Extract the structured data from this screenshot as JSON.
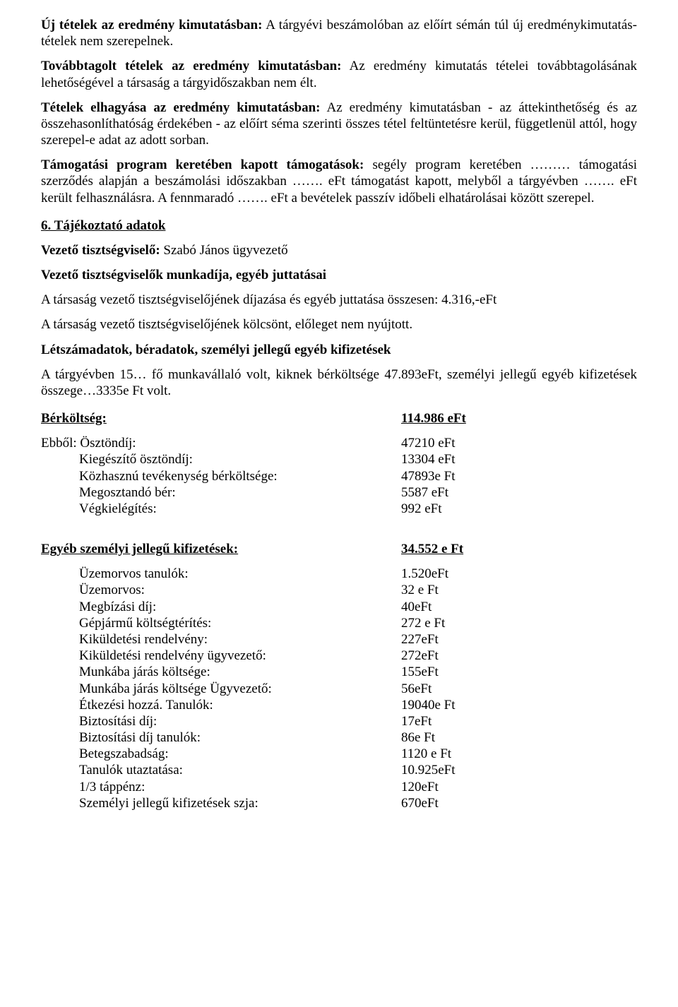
{
  "paragraphs": {
    "p1_lead": "Új tételek az eredmény kimutatásban:",
    "p1_rest": " A tárgyévi beszámolóban az előírt sémán túl új eredménykimutatás-tételek nem szerepelnek.",
    "p2_lead": "Továbbtagolt tételek az eredmény kimutatásban:",
    "p2_rest": " Az eredmény kimutatás tételei továbbtagolásának lehetőségével a társaság a tárgyidőszakban nem élt.",
    "p3_lead": "Tételek elhagyása az eredmény kimutatásban:",
    "p3_rest": " Az eredmény kimutatásban - az áttekinthetőség és az összehasonlíthatóság érdekében - az előírt séma szerinti összes tétel feltüntetésre kerül, függetlenül attól, hogy szerepel-e adat az adott sorban.",
    "p4_lead": "Támogatási program keretében kapott támogatások:",
    "p4_rest": " segély program keretében ……… támogatási szerződés alapján a beszámolási időszakban ……. eFt támogatást kapott, melyből a tárgyévben ……. eFt került felhasználásra. A fennmaradó ……. eFt a bevételek passzív időbeli elhatárolásai között szerepel.",
    "h6": "6. Tájékoztató adatok",
    "vezeto_l": "Vezető tisztségviselő: ",
    "vezeto_r": "Szabó János ügyvezető",
    "vezeto_munk": "Vezető tisztségviselők munkadíja, egyéb juttatásai",
    "dij": "A társaság vezető tisztségviselőjének díjazása és egyéb juttatása összesen: 4.316,-eFt",
    "kolcson": "A társaság vezető tisztségviselőjének kölcsönt, előleget nem nyújtott.",
    "letszam": "Létszámadatok, béradatok, személyi jellegű egyéb kifizetések",
    "targyev": "A tárgyévben 15… fő munkavállaló volt, kiknek bérköltsége 47.893eFt, személyi jellegű egyéb kifizetések összege…3335e Ft volt.",
    "ber_label": "Bérköltség:",
    "ber_value": "114.986 eFt",
    "ebbol": "Ebből: Ösztöndíj:",
    "ber_rows": [
      {
        "label": "Kiegészítő ösztöndíj:",
        "value": "13304 eFt"
      },
      {
        "label": "Közhasznú tevékenység bérköltsége:",
        "value": "47893e Ft"
      },
      {
        "label": "Megosztandó bér:",
        "value": "5587 eFt"
      },
      {
        "label": "Végkielégítés:",
        "value": "992 eFt"
      }
    ],
    "ebbol_value": "47210 eFt",
    "egy_label": "Egyéb személyi jellegű kifizetések:",
    "egy_value": "34.552 e Ft",
    "egy_rows": [
      {
        "label": "Üzemorvos tanulók:",
        "value": "1.520eFt"
      },
      {
        "label": "Üzemorvos:",
        "value": "32 e Ft"
      },
      {
        "label": "Megbízási díj:",
        "value": "40eFt"
      },
      {
        "label": "Gépjármű költségtérítés:",
        "value": "272 e Ft"
      },
      {
        "label": "Kiküldetési rendelvény:",
        "value": "227eFt"
      },
      {
        "label": "Kiküldetési rendelvény ügyvezető:",
        "value": "272eFt"
      },
      {
        "label": "Munkába járás költsége:",
        "value": "155eFt"
      },
      {
        "label": "Munkába járás költsége Ügyvezető:",
        "value": "56eFt"
      },
      {
        "label": "Étkezési hozzá. Tanulók:",
        "value": "19040e Ft"
      },
      {
        "label": "Biztosítási díj:",
        "value": "17eFt"
      },
      {
        "label": "Biztosítási díj tanulók:",
        "value": "86e Ft"
      },
      {
        "label": "Betegszabadság:",
        "value": "1120 e Ft"
      },
      {
        "label": "Tanulók utaztatása:",
        "value": "10.925eFt"
      },
      {
        "label": "1/3 táppénz:",
        "value": "120eFt"
      },
      {
        "label": "Személyi jellegű kifizetések szja:",
        "value": "670eFt"
      }
    ]
  }
}
